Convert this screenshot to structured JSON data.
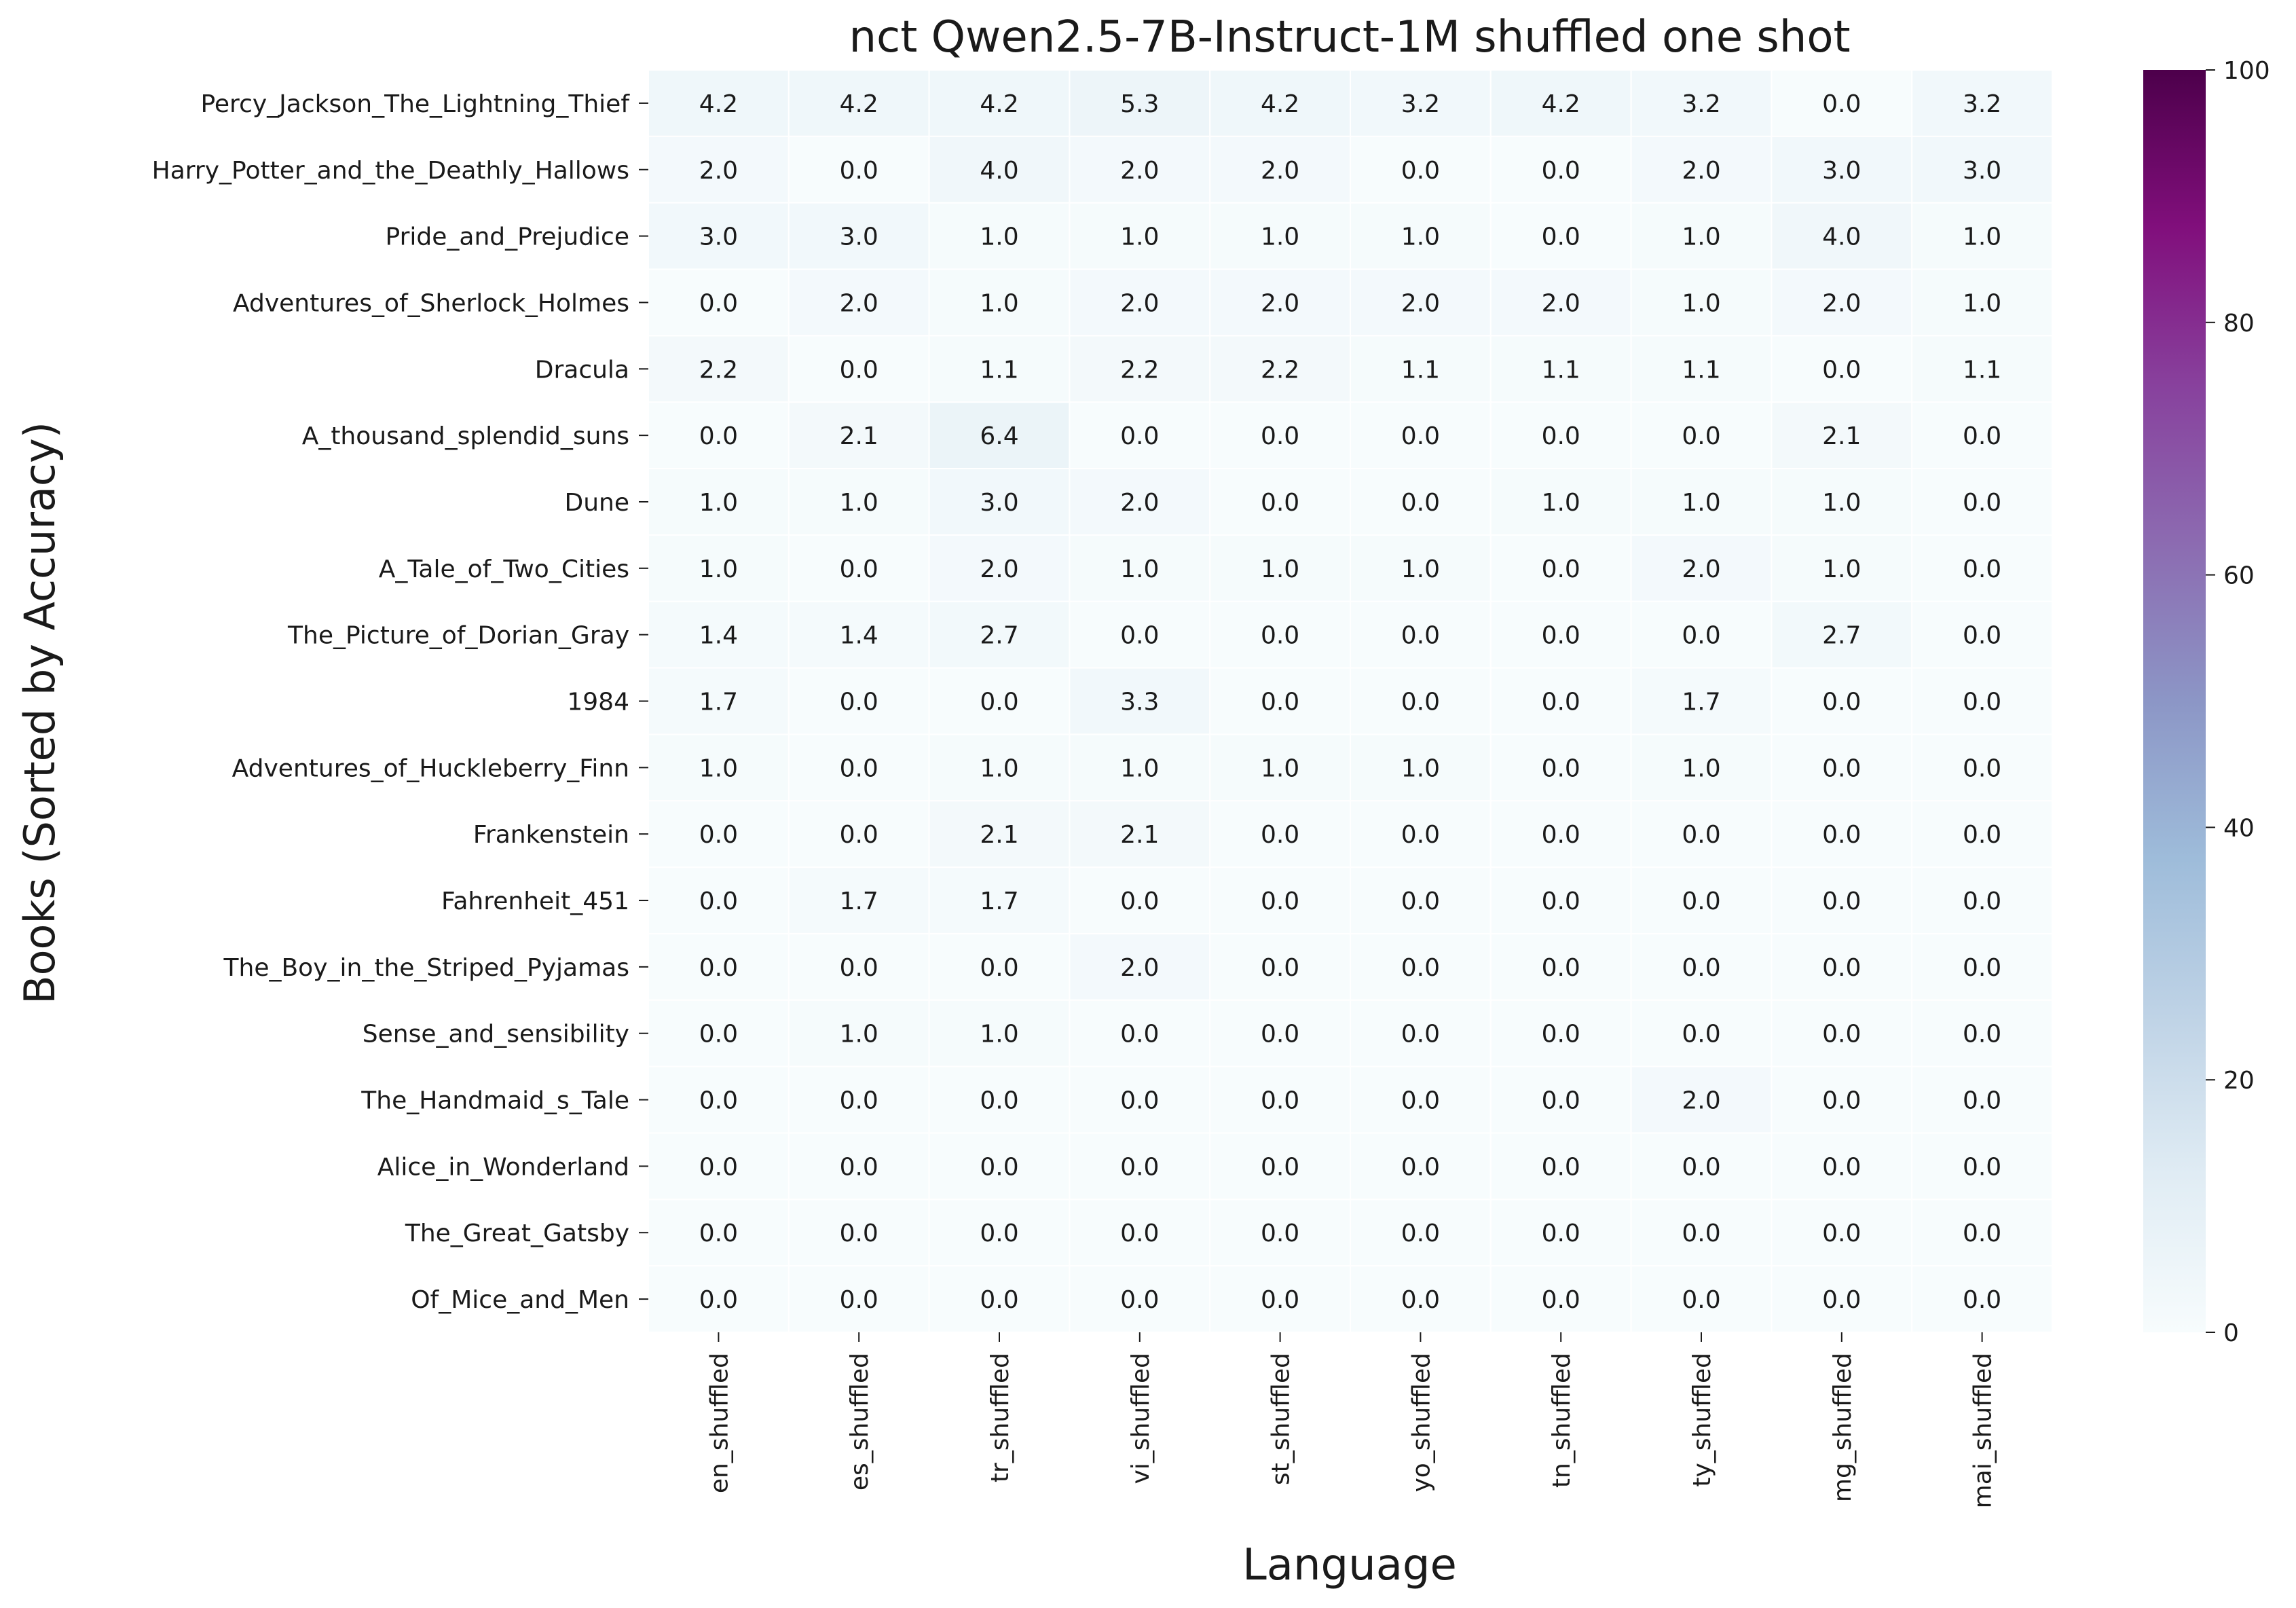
{
  "chart_data": {
    "type": "heatmap",
    "title": "nct Qwen2.5-7B-Instruct-1M shuffled one shot",
    "xlabel": "Language",
    "ylabel": "Books (Sorted by Accuracy)",
    "x_categories": [
      "en_shuffled",
      "es_shuffled",
      "tr_shuffled",
      "vi_shuffled",
      "st_shuffled",
      "yo_shuffled",
      "tn_shuffled",
      "ty_shuffled",
      "mg_shuffled",
      "mai_shuffled"
    ],
    "y_categories": [
      "Percy_Jackson_The_Lightning_Thief",
      "Harry_Potter_and_the_Deathly_Hallows",
      "Pride_and_Prejudice",
      "Adventures_of_Sherlock_Holmes",
      "Dracula",
      "A_thousand_splendid_suns",
      "Dune",
      "A_Tale_of_Two_Cities",
      "The_Picture_of_Dorian_Gray",
      "1984",
      "Adventures_of_Huckleberry_Finn",
      "Frankenstein",
      "Fahrenheit_451",
      "The_Boy_in_the_Striped_Pyjamas",
      "Sense_and_sensibility",
      "The_Handmaid_s_Tale",
      "Alice_in_Wonderland",
      "The_Great_Gatsby",
      "Of_Mice_and_Men"
    ],
    "values": [
      [
        4.2,
        4.2,
        4.2,
        5.3,
        4.2,
        3.2,
        4.2,
        3.2,
        0.0,
        3.2
      ],
      [
        2.0,
        0.0,
        4.0,
        2.0,
        2.0,
        0.0,
        0.0,
        2.0,
        3.0,
        3.0
      ],
      [
        3.0,
        3.0,
        1.0,
        1.0,
        1.0,
        1.0,
        0.0,
        1.0,
        4.0,
        1.0
      ],
      [
        0.0,
        2.0,
        1.0,
        2.0,
        2.0,
        2.0,
        2.0,
        1.0,
        2.0,
        1.0
      ],
      [
        2.2,
        0.0,
        1.1,
        2.2,
        2.2,
        1.1,
        1.1,
        1.1,
        0.0,
        1.1
      ],
      [
        0.0,
        2.1,
        6.4,
        0.0,
        0.0,
        0.0,
        0.0,
        0.0,
        2.1,
        0.0
      ],
      [
        1.0,
        1.0,
        3.0,
        2.0,
        0.0,
        0.0,
        1.0,
        1.0,
        1.0,
        0.0
      ],
      [
        1.0,
        0.0,
        2.0,
        1.0,
        1.0,
        1.0,
        0.0,
        2.0,
        1.0,
        0.0
      ],
      [
        1.4,
        1.4,
        2.7,
        0.0,
        0.0,
        0.0,
        0.0,
        0.0,
        2.7,
        0.0
      ],
      [
        1.7,
        0.0,
        0.0,
        3.3,
        0.0,
        0.0,
        0.0,
        1.7,
        0.0,
        0.0
      ],
      [
        1.0,
        0.0,
        1.0,
        1.0,
        1.0,
        1.0,
        0.0,
        1.0,
        0.0,
        0.0
      ],
      [
        0.0,
        0.0,
        2.1,
        2.1,
        0.0,
        0.0,
        0.0,
        0.0,
        0.0,
        0.0
      ],
      [
        0.0,
        1.7,
        1.7,
        0.0,
        0.0,
        0.0,
        0.0,
        0.0,
        0.0,
        0.0
      ],
      [
        0.0,
        0.0,
        0.0,
        2.0,
        0.0,
        0.0,
        0.0,
        0.0,
        0.0,
        0.0
      ],
      [
        0.0,
        1.0,
        1.0,
        0.0,
        0.0,
        0.0,
        0.0,
        0.0,
        0.0,
        0.0
      ],
      [
        0.0,
        0.0,
        0.0,
        0.0,
        0.0,
        0.0,
        0.0,
        2.0,
        0.0,
        0.0
      ],
      [
        0.0,
        0.0,
        0.0,
        0.0,
        0.0,
        0.0,
        0.0,
        0.0,
        0.0,
        0.0
      ],
      [
        0.0,
        0.0,
        0.0,
        0.0,
        0.0,
        0.0,
        0.0,
        0.0,
        0.0,
        0.0
      ],
      [
        0.0,
        0.0,
        0.0,
        0.0,
        0.0,
        0.0,
        0.0,
        0.0,
        0.0,
        0.0
      ]
    ],
    "value_range": [
      0,
      100
    ],
    "colormap": "BuPu",
    "colorbar_ticks": [
      0,
      20,
      40,
      60,
      80,
      100
    ],
    "colorbar_tick_labels": [
      "0",
      "20",
      "40",
      "60",
      "80",
      "100"
    ],
    "grid": false,
    "legend": "colorbar right",
    "colors": {
      "cmap_stops": [
        "#f7fcfd",
        "#e0ecf4",
        "#bfd3e6",
        "#9ebcda",
        "#8c96c6",
        "#8c6bb1",
        "#88419d",
        "#810f7c",
        "#4d004b"
      ],
      "cell_border": "#ffffff",
      "text": "#1a1a1a"
    }
  }
}
